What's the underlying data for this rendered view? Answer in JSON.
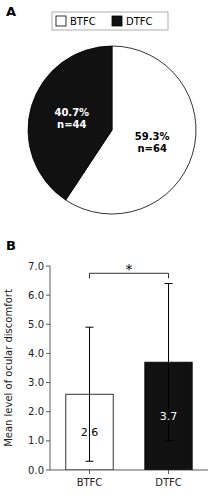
{
  "chart_data": [
    {
      "type": "pie",
      "title": "A",
      "categories": [
        "BTFC",
        "DTFC"
      ],
      "values": [
        59.3,
        40.7
      ],
      "value_labels": [
        "59.3%\nn=64",
        "40.7%\nn=44"
      ],
      "colors": [
        "#ffffff",
        "#111111"
      ],
      "data_labels": true,
      "legend": "top"
    },
    {
      "type": "bar",
      "title": "B",
      "categories": [
        "BTFC",
        "DTFC"
      ],
      "values": [
        2.6,
        3.7
      ],
      "error_lower": [
        2.3,
        2.7
      ],
      "error_upper": [
        2.3,
        2.7
      ],
      "colors": [
        "#ffffff",
        "#111111"
      ],
      "ylabel": "Mean level of ocular discomfort",
      "ylim": [
        0.0,
        7.0
      ],
      "yticks": [
        {
          "value": 0,
          "label": "0.0"
        },
        {
          "value": 1,
          "label": "1.0"
        },
        {
          "value": 2,
          "label": "2.0"
        },
        {
          "value": 3,
          "label": "3.0"
        },
        {
          "value": 4,
          "label": "4.0"
        },
        {
          "value": 5,
          "label": "5.0"
        },
        {
          "value": 6,
          "label": "6.0"
        },
        {
          "value": 7,
          "label": "7.0"
        }
      ],
      "data_labels": true,
      "grid": false,
      "annotations": [
        {
          "text": "*",
          "y": 6.75
        }
      ]
    }
  ]
}
